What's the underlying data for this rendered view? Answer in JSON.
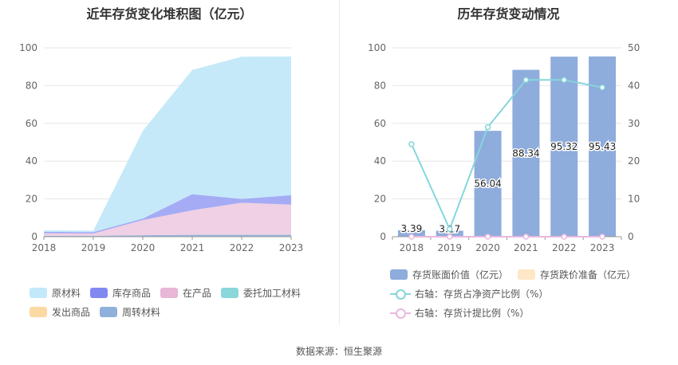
{
  "footer": {
    "source": "数据来源：恒生聚源"
  },
  "colors": {
    "raw_materials": "#c2e8f9",
    "inventory_goods": "#a0a6f4",
    "wip": "#eecde3",
    "consigned": "#8ad6d8",
    "shipped": "#fbd9a3",
    "revolving": "#8fb0da",
    "bar": "#8eacdc",
    "provision": "#fde7c6",
    "line_ratio": "#85d6dc",
    "line_provision_ratio": "#e9b8df"
  },
  "chart_data": [
    {
      "type": "area",
      "stacked": true,
      "title": "近年存货变化堆积图（亿元）",
      "x": [
        "2018",
        "2019",
        "2020",
        "2021",
        "2022",
        "2023"
      ],
      "ylim": [
        0,
        100
      ],
      "yticks": [
        "0",
        "20",
        "40",
        "60",
        "80",
        "100"
      ],
      "grid": true,
      "legend_position": "bottom",
      "series": [
        {
          "name": "周转材料",
          "color_key": "revolving",
          "values": [
            0.5,
            0.5,
            0.8,
            1.0,
            1.0,
            1.0
          ]
        },
        {
          "name": "发出商品",
          "color_key": "shipped",
          "values": [
            0,
            0,
            0,
            0,
            0,
            0
          ]
        },
        {
          "name": "委托加工材料",
          "color_key": "consigned",
          "values": [
            0,
            0,
            0,
            0,
            0,
            0
          ]
        },
        {
          "name": "在产品",
          "color_key": "wip",
          "values": [
            1.3,
            1.2,
            8.0,
            13.0,
            17.0,
            16.0
          ]
        },
        {
          "name": "库存商品",
          "color_key": "inventory_goods",
          "values": [
            0.8,
            0.7,
            0.8,
            8.5,
            2.0,
            5.0
          ]
        },
        {
          "name": "原材料",
          "color_key": "raw_materials",
          "values": [
            0.8,
            0.8,
            46.4,
            65.8,
            75.3,
            73.4
          ]
        }
      ],
      "legend_order": [
        "原材料",
        "库存商品",
        "在产品",
        "委托加工材料",
        "发出商品",
        "周转材料"
      ]
    },
    {
      "type": "bar",
      "title": "历年存货变动情况",
      "x": [
        "2018",
        "2019",
        "2020",
        "2021",
        "2022",
        "2023"
      ],
      "ylim": [
        0,
        100
      ],
      "yticks": [
        "0",
        "20",
        "40",
        "60",
        "80",
        "100"
      ],
      "y2lim": [
        0,
        50
      ],
      "y2ticks": [
        "0",
        "10",
        "20",
        "30",
        "40",
        "50"
      ],
      "grid": true,
      "legend_position": "bottom",
      "series": [
        {
          "name": "存货账面价值（亿元）",
          "color_key": "bar",
          "axis": "left",
          "values": [
            3.39,
            3.17,
            56.04,
            88.34,
            95.32,
            95.43
          ],
          "labels": [
            "3.39",
            "3.17",
            "56.04",
            "88.34",
            "95.32",
            "95.43"
          ]
        },
        {
          "name": "存货跌价准备（亿元）",
          "color_key": "provision",
          "axis": "left",
          "values": [
            0,
            0,
            0,
            0,
            0,
            0
          ]
        },
        {
          "name": "右轴：存货占净资产比例（%）",
          "color_key": "line_ratio",
          "axis": "right",
          "type": "line",
          "values": [
            24.5,
            2.0,
            29.0,
            41.5,
            41.5,
            39.5
          ]
        },
        {
          "name": "右轴：存货计提比例（%）",
          "color_key": "line_provision_ratio",
          "axis": "right",
          "type": "line",
          "values": [
            0,
            0,
            0,
            0,
            0,
            0
          ]
        }
      ]
    }
  ]
}
